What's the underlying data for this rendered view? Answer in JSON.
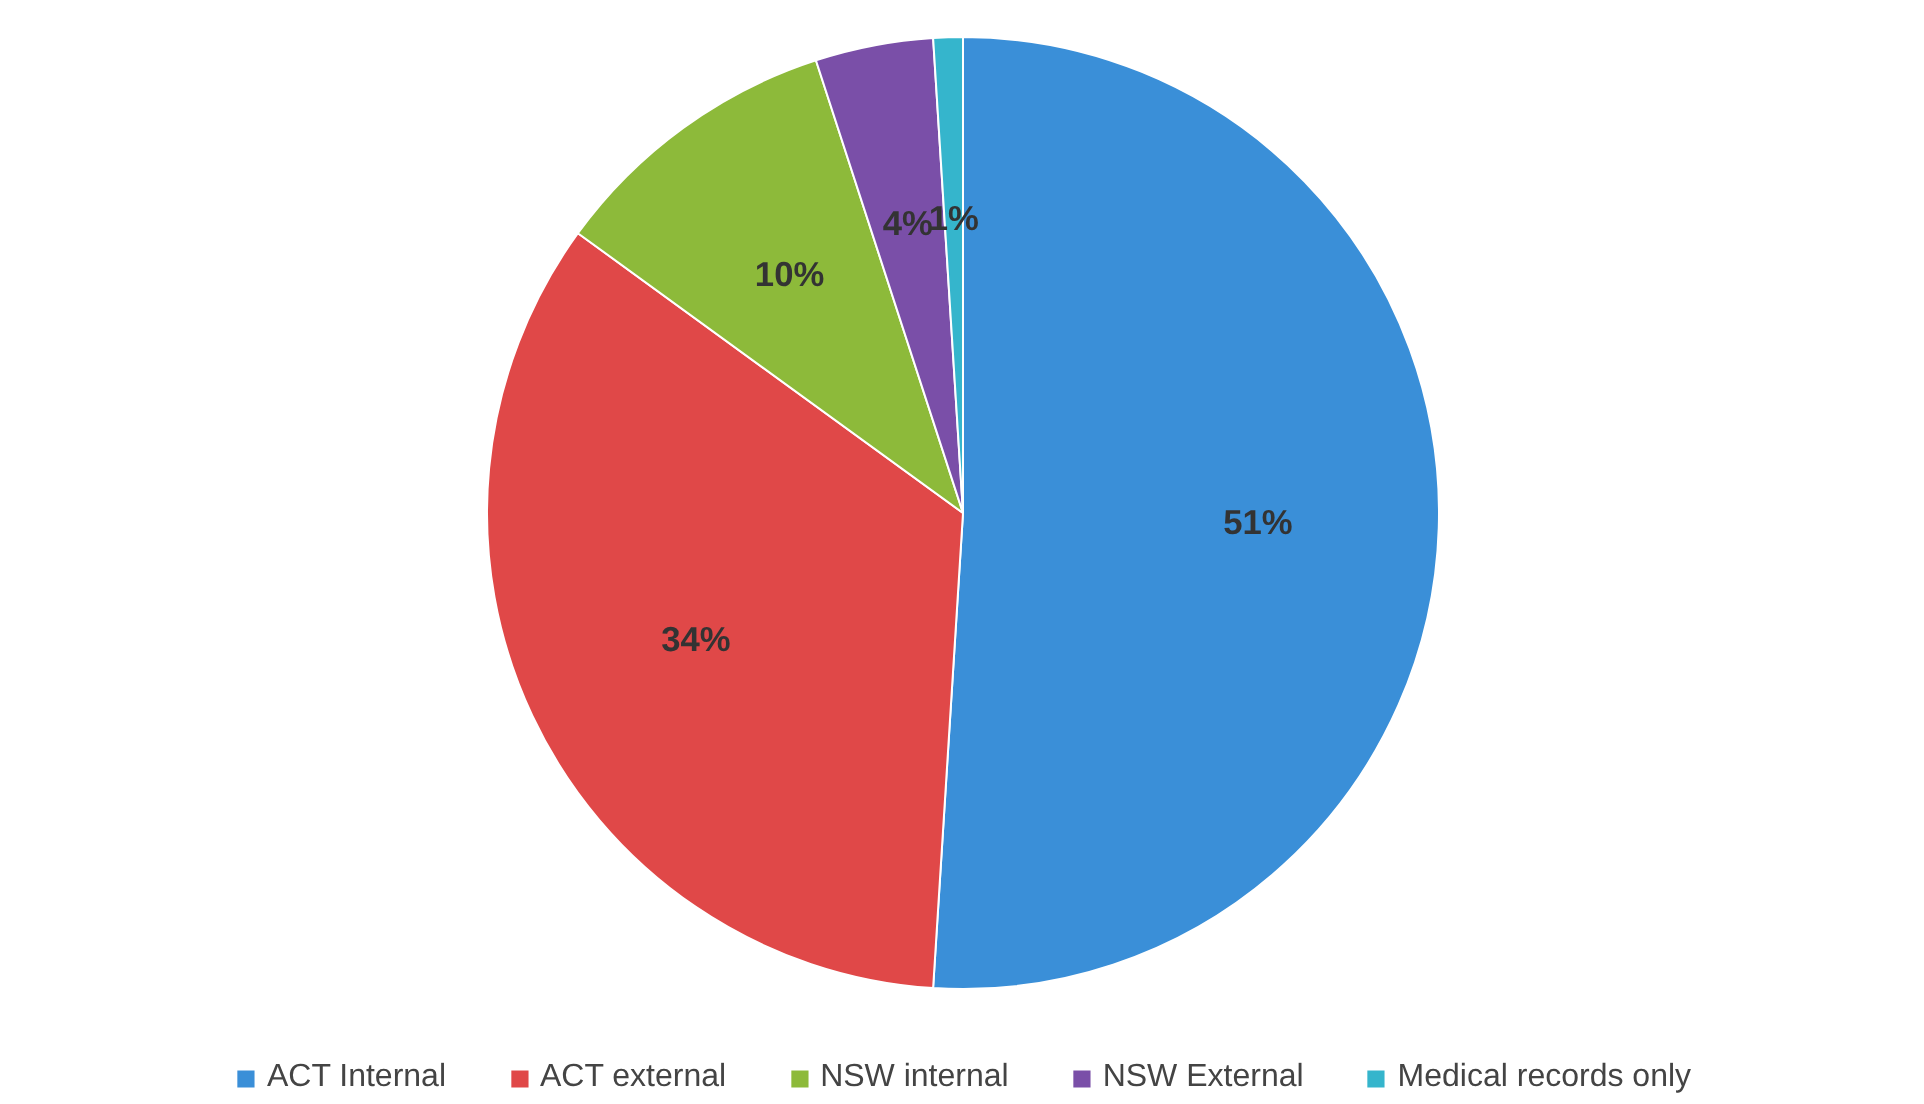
{
  "chart_data": {
    "type": "pie",
    "categories": [
      "ACT Internal",
      "ACT external",
      "NSW internal",
      "NSW External",
      "Medical records only"
    ],
    "values": [
      51,
      34,
      10,
      4,
      1
    ],
    "colors": [
      "#3a8fd8",
      "#e04848",
      "#8dba3a",
      "#7a4fa8",
      "#35b5cc"
    ],
    "value_labels": [
      "51%",
      "34%",
      "10%",
      "4%",
      "1%"
    ],
    "legend": "bottom"
  }
}
